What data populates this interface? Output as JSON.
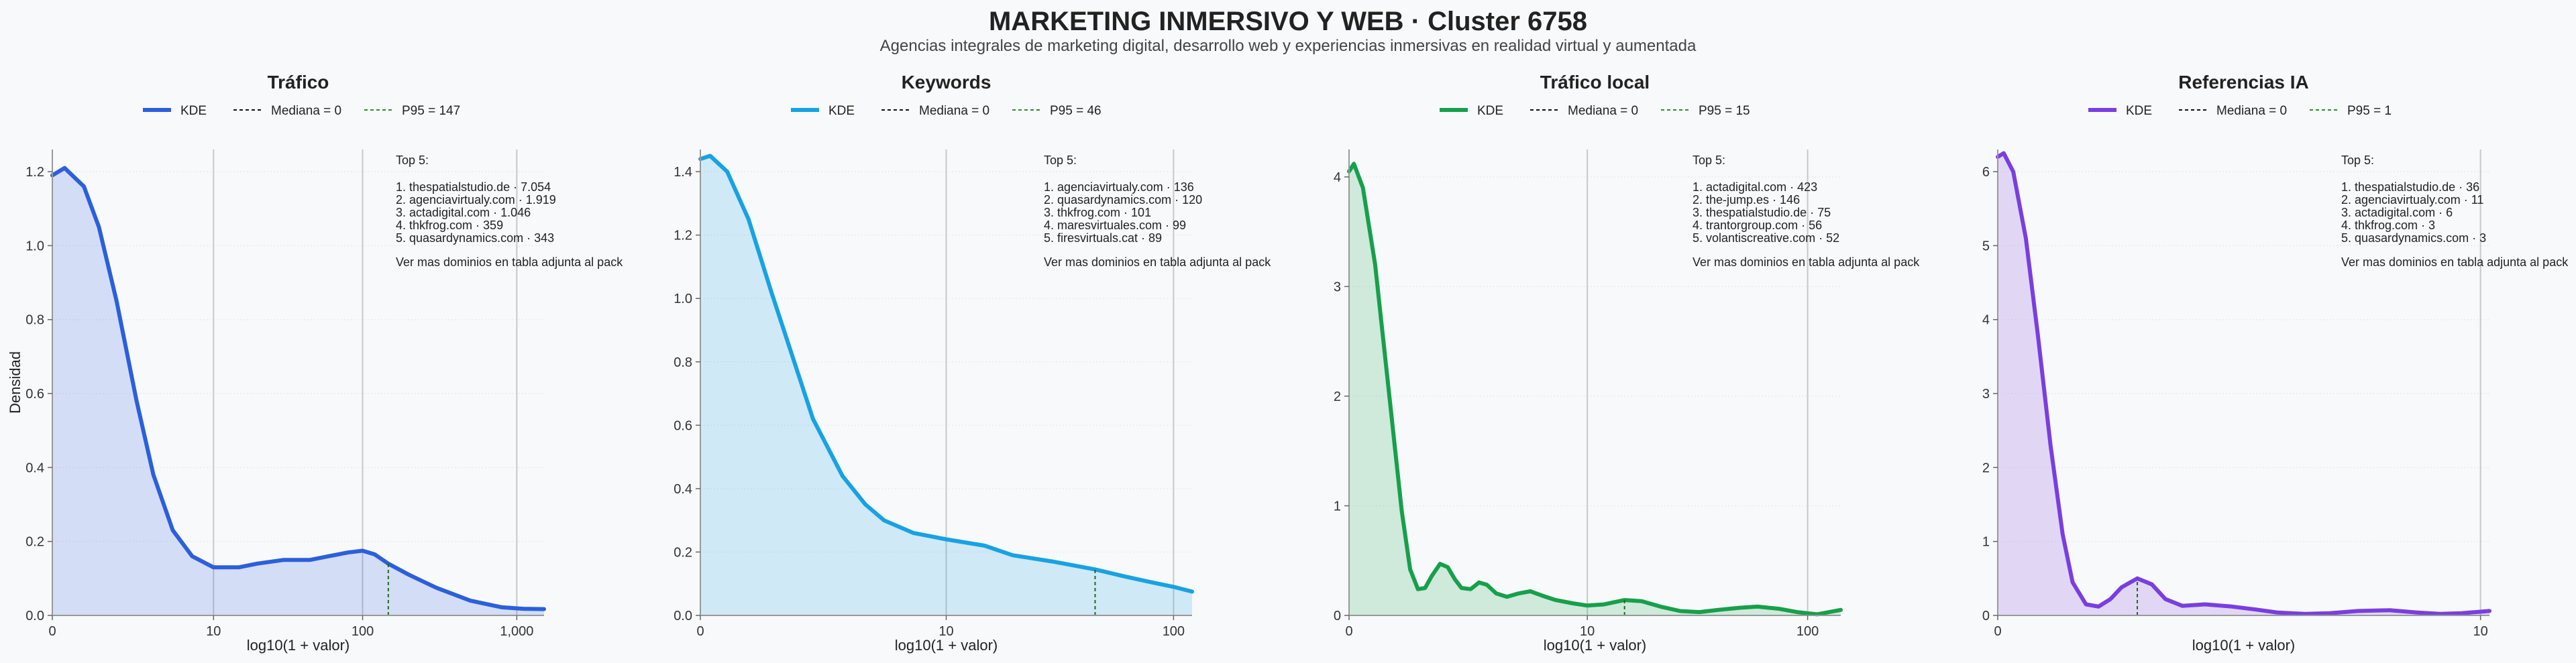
{
  "page": {
    "title": "MARKETING INMERSIVO Y WEB · Cluster 6758",
    "subtitle": "Agencias integrales de marketing digital, desarrollo web y experiencias inmersivas en realidad virtual y aumentada"
  },
  "chart_data": [
    {
      "type": "area",
      "title": "Tráfico",
      "xlabel": "log10(1 + valor)",
      "ylabel": "Densidad",
      "color": "#2b5fdc",
      "xscale": "log10(1+x)",
      "xlim": [
        0,
        1500
      ],
      "ylim": [
        0,
        1.26
      ],
      "xticks": [
        0,
        10,
        100,
        1000
      ],
      "xtick_labels": [
        "0",
        "10",
        "100",
        "1,000"
      ],
      "yticks": [
        0.0,
        0.2,
        0.4,
        0.6,
        0.8,
        1.0,
        1.2
      ],
      "ytick_labels": [
        "0.0",
        "0.2",
        "0.4",
        "0.6",
        "0.8",
        "1.0",
        "1.2"
      ],
      "legend": {
        "kde": "KDE",
        "median": "Mediana = 0",
        "p95": "P95 = 147"
      },
      "median": 0,
      "p95": 147,
      "x": [
        0,
        0.2,
        0.6,
        1,
        1.6,
        2.5,
        3.5,
        5,
        7,
        10,
        15,
        20,
        30,
        45,
        60,
        80,
        100,
        120,
        147,
        200,
        300,
        500,
        800,
        1100,
        1500
      ],
      "y": [
        1.19,
        1.21,
        1.16,
        1.05,
        0.85,
        0.58,
        0.38,
        0.23,
        0.16,
        0.13,
        0.13,
        0.14,
        0.15,
        0.15,
        0.16,
        0.17,
        0.175,
        0.165,
        0.14,
        0.11,
        0.075,
        0.04,
        0.022,
        0.018,
        0.017
      ],
      "top5_title": "Top 5:",
      "top5": [
        "1. thespatialstudio.de · 7.054",
        "2. agenciavirtualy.com · 1.919",
        "3. actadigital.com · 1.046",
        "4. thkfrog.com · 359",
        "5. quasardynamics.com · 343"
      ],
      "note": "Ver mas dominios en tabla adjunta al pack"
    },
    {
      "type": "area",
      "title": "Keywords",
      "xlabel": "log10(1 + valor)",
      "ylabel": "",
      "color": "#17a2e3",
      "xscale": "log10(1+x)",
      "xlim": [
        0,
        120
      ],
      "ylim": [
        0,
        1.47
      ],
      "xticks": [
        0,
        10,
        100
      ],
      "xtick_labels": [
        "0",
        "10",
        "100"
      ],
      "yticks": [
        0.0,
        0.2,
        0.4,
        0.6,
        0.8,
        1.0,
        1.2,
        1.4
      ],
      "ytick_labels": [
        "0.0",
        "0.2",
        "0.4",
        "0.6",
        "0.8",
        "1.0",
        "1.2",
        "1.4"
      ],
      "legend": {
        "kde": "KDE",
        "median": "Mediana = 0",
        "p95": "P95 = 46"
      },
      "median": 0,
      "p95": 46,
      "x": [
        0,
        0.1,
        0.3,
        0.6,
        1,
        1.5,
        2,
        3,
        4,
        5,
        7,
        10,
        15,
        20,
        30,
        46,
        60,
        80,
        100,
        120
      ],
      "y": [
        1.44,
        1.45,
        1.4,
        1.25,
        1.02,
        0.8,
        0.62,
        0.44,
        0.35,
        0.3,
        0.26,
        0.24,
        0.22,
        0.19,
        0.17,
        0.145,
        0.125,
        0.105,
        0.09,
        0.075
      ],
      "top5_title": "Top 5:",
      "top5": [
        "1. agenciavirtualy.com · 136",
        "2. quasardynamics.com · 120",
        "3. thkfrog.com · 101",
        "4. maresvirtuales.com · 99",
        "5. firesvirtuals.cat · 89"
      ],
      "note": "Ver mas dominios en tabla adjunta al pack"
    },
    {
      "type": "area",
      "title": "Tráfico local",
      "xlabel": "log10(1 + valor)",
      "ylabel": "",
      "color": "#16a04b",
      "xscale": "log10(1+x)",
      "xlim": [
        0,
        140
      ],
      "ylim": [
        0,
        4.25
      ],
      "xticks": [
        0,
        10,
        100
      ],
      "xtick_labels": [
        "0",
        "10",
        "100"
      ],
      "yticks": [
        0,
        1,
        2,
        3,
        4
      ],
      "ytick_labels": [
        "0",
        "1",
        "2",
        "3",
        "4"
      ],
      "legend": {
        "kde": "KDE",
        "median": "Mediana = 0",
        "p95": "P95 = 15"
      },
      "median": 0,
      "p95": 15,
      "x": [
        0,
        0.05,
        0.15,
        0.3,
        0.5,
        0.7,
        0.85,
        1.0,
        1.15,
        1.3,
        1.5,
        1.7,
        1.9,
        2.1,
        2.4,
        2.7,
        3.0,
        3.4,
        3.9,
        4.5,
        5.2,
        6,
        7,
        8.5,
        10,
        12,
        15,
        18,
        22,
        27,
        33,
        40,
        50,
        60,
        75,
        90,
        110,
        140
      ],
      "y": [
        4.05,
        4.12,
        3.9,
        3.2,
        2.0,
        0.95,
        0.42,
        0.24,
        0.25,
        0.36,
        0.47,
        0.44,
        0.33,
        0.25,
        0.24,
        0.3,
        0.28,
        0.2,
        0.17,
        0.2,
        0.22,
        0.18,
        0.14,
        0.11,
        0.09,
        0.1,
        0.14,
        0.13,
        0.08,
        0.04,
        0.03,
        0.05,
        0.07,
        0.08,
        0.06,
        0.03,
        0.01,
        0.05
      ],
      "top5_title": "Top 5:",
      "top5": [
        "1. actadigital.com · 423",
        "2. the-jump.es · 146",
        "3. thespatialstudio.de · 75",
        "4. trantorgroup.com · 56",
        "5. volantiscreative.com · 52"
      ],
      "note": "Ver mas dominios en tabla adjunta al pack"
    },
    {
      "type": "area",
      "title": "Referencias IA",
      "xlabel": "log10(1 + valor)",
      "ylabel": "",
      "color": "#7a3ee0",
      "xscale": "log10(1+x)",
      "xlim": [
        0,
        10.5
      ],
      "ylim": [
        0,
        6.3
      ],
      "xticks": [
        0,
        10
      ],
      "xtick_labels": [
        "0",
        "10"
      ],
      "yticks": [
        0,
        1,
        2,
        3,
        4,
        5,
        6
      ],
      "ytick_labels": [
        "0",
        "1",
        "2",
        "3",
        "4",
        "5",
        "6"
      ],
      "legend": {
        "kde": "KDE",
        "median": "Mediana = 0",
        "p95": "P95 = 1"
      },
      "median": 0,
      "p95": 1,
      "x": [
        0,
        0.03,
        0.08,
        0.15,
        0.22,
        0.3,
        0.38,
        0.45,
        0.55,
        0.65,
        0.75,
        0.85,
        1.0,
        1.15,
        1.3,
        1.5,
        1.8,
        2.2,
        2.6,
        3.0,
        3.6,
        4.2,
        5.0,
        6.0,
        7.0,
        8.0,
        9.0,
        10.0,
        10.5
      ],
      "y": [
        6.2,
        6.25,
        6.0,
        5.1,
        3.8,
        2.3,
        1.1,
        0.45,
        0.15,
        0.12,
        0.22,
        0.38,
        0.5,
        0.42,
        0.22,
        0.13,
        0.15,
        0.12,
        0.08,
        0.04,
        0.02,
        0.03,
        0.06,
        0.07,
        0.04,
        0.02,
        0.03,
        0.05,
        0.06
      ],
      "top5_title": "Top 5:",
      "top5": [
        "1. thespatialstudio.de · 36",
        "2. agenciavirtualy.com · 11",
        "3. actadigital.com · 6",
        "4. thkfrog.com · 3",
        "5. quasardynamics.com · 3"
      ],
      "note": "Ver mas dominios en tabla adjunta al pack"
    }
  ]
}
